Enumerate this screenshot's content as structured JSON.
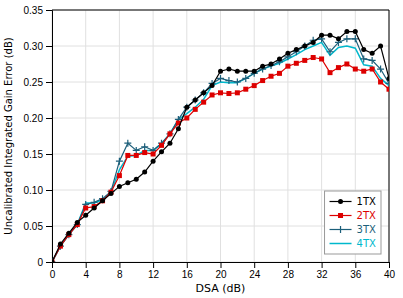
{
  "chart_data": {
    "type": "line",
    "xlabel": "DSA (dB)",
    "ylabel": "Uncalibrated Integrated Gain Error (dB)",
    "x": [
      0,
      1,
      2,
      3,
      4,
      5,
      6,
      7,
      8,
      9,
      10,
      11,
      12,
      13,
      14,
      15,
      16,
      17,
      18,
      19,
      20,
      21,
      22,
      23,
      24,
      25,
      26,
      27,
      28,
      29,
      30,
      31,
      32,
      33,
      34,
      35,
      36,
      37,
      38,
      39,
      40
    ],
    "series": [
      {
        "name": "1TX",
        "color": "#000000",
        "marker": "circle",
        "values": [
          0,
          0.025,
          0.04,
          0.055,
          0.065,
          0.075,
          0.085,
          0.095,
          0.105,
          0.11,
          0.115,
          0.125,
          0.14,
          0.153,
          0.165,
          0.185,
          0.215,
          0.225,
          0.235,
          0.245,
          0.265,
          0.268,
          0.265,
          0.265,
          0.265,
          0.272,
          0.275,
          0.282,
          0.29,
          0.295,
          0.3,
          0.305,
          0.315,
          0.315,
          0.31,
          0.32,
          0.32,
          0.295,
          0.29,
          0.3,
          0.255
        ]
      },
      {
        "name": "2TX",
        "color": "#dd0000",
        "marker": "square",
        "values": [
          0,
          0.022,
          0.038,
          0.052,
          0.075,
          0.077,
          0.085,
          0.097,
          0.12,
          0.148,
          0.148,
          0.152,
          0.15,
          0.162,
          0.178,
          0.193,
          0.2,
          0.212,
          0.222,
          0.232,
          0.235,
          0.234,
          0.235,
          0.24,
          0.245,
          0.252,
          0.258,
          0.262,
          0.272,
          0.276,
          0.28,
          0.284,
          0.282,
          0.263,
          0.27,
          0.275,
          0.268,
          0.265,
          0.268,
          0.25,
          0.24
        ]
      },
      {
        "name": "3TX",
        "color": "#1c5f7a",
        "marker": "plus",
        "values": [
          0,
          0.022,
          0.038,
          0.052,
          0.08,
          0.083,
          0.088,
          0.098,
          0.14,
          0.165,
          0.155,
          0.16,
          0.155,
          0.165,
          0.178,
          0.198,
          0.215,
          0.225,
          0.235,
          0.248,
          0.255,
          0.252,
          0.25,
          0.255,
          0.262,
          0.268,
          0.273,
          0.278,
          0.285,
          0.292,
          0.3,
          0.308,
          0.31,
          0.292,
          0.305,
          0.31,
          0.31,
          0.282,
          0.28,
          0.268,
          0.248
        ]
      },
      {
        "name": "4TX",
        "color": "#00b8cc",
        "values": [
          0,
          0.022,
          0.038,
          0.052,
          0.082,
          0.082,
          0.086,
          0.097,
          0.128,
          0.147,
          0.148,
          0.155,
          0.155,
          0.164,
          0.178,
          0.198,
          0.206,
          0.215,
          0.226,
          0.245,
          0.25,
          0.249,
          0.249,
          0.255,
          0.262,
          0.268,
          0.272,
          0.276,
          0.282,
          0.288,
          0.295,
          0.3,
          0.305,
          0.287,
          0.298,
          0.3,
          0.297,
          0.274,
          0.272,
          0.255,
          0.245
        ]
      }
    ],
    "xlim": [
      0,
      40
    ],
    "ylim": [
      0,
      0.35
    ],
    "xticks": [
      0,
      4,
      8,
      12,
      16,
      20,
      24,
      28,
      32,
      36,
      40
    ],
    "yticks": [
      0,
      0.05,
      {
        "value": 0.1,
        "label": "0.10"
      },
      0.15,
      {
        "value": 0.2,
        "label": "0.20"
      },
      0.25,
      {
        "value": 0.3,
        "label": "0.30"
      },
      0.35
    ],
    "grid": true,
    "legend": "lower right"
  }
}
